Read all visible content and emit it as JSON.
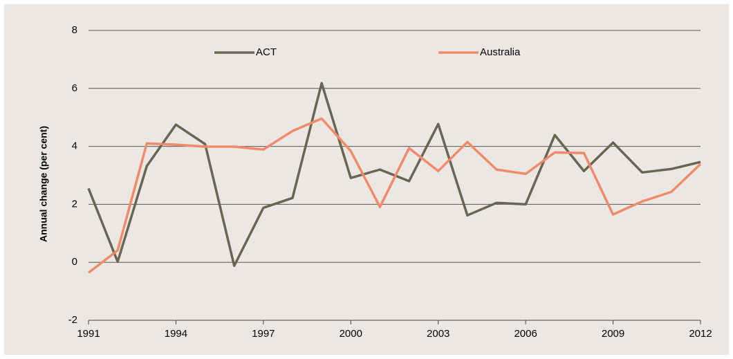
{
  "chart_data": {
    "type": "line",
    "ylabel": "Annual change (per cent)",
    "x": [
      1991,
      1992,
      1993,
      1994,
      1995,
      1996,
      1997,
      1998,
      1999,
      2000,
      2001,
      2002,
      2003,
      2004,
      2005,
      2006,
      2007,
      2008,
      2009,
      2010,
      2011,
      2012
    ],
    "series": [
      {
        "name": "ACT",
        "color": "#6b6453",
        "values": [
          2.55,
          0.02,
          3.32,
          4.75,
          4.08,
          -0.12,
          1.88,
          2.22,
          6.18,
          2.91,
          3.2,
          2.8,
          4.77,
          1.62,
          2.05,
          2.0,
          4.39,
          3.15,
          4.13,
          3.1,
          3.22,
          3.46
        ]
      },
      {
        "name": "Australia",
        "color": "#f08a6a",
        "values": [
          -0.36,
          0.41,
          4.1,
          4.06,
          3.99,
          3.99,
          3.89,
          4.53,
          4.96,
          3.84,
          1.91,
          3.94,
          3.15,
          4.15,
          3.2,
          3.05,
          3.79,
          3.77,
          1.65,
          2.1,
          2.43,
          3.39
        ]
      }
    ],
    "xlim": [
      1991,
      2012
    ],
    "xticks": [
      1991,
      1994,
      1997,
      2000,
      2003,
      2006,
      2009,
      2012
    ],
    "ylim": [
      -2,
      8
    ],
    "yticks": [
      -2,
      0,
      2,
      4,
      6,
      8
    ],
    "grid": true,
    "legend": "top"
  }
}
